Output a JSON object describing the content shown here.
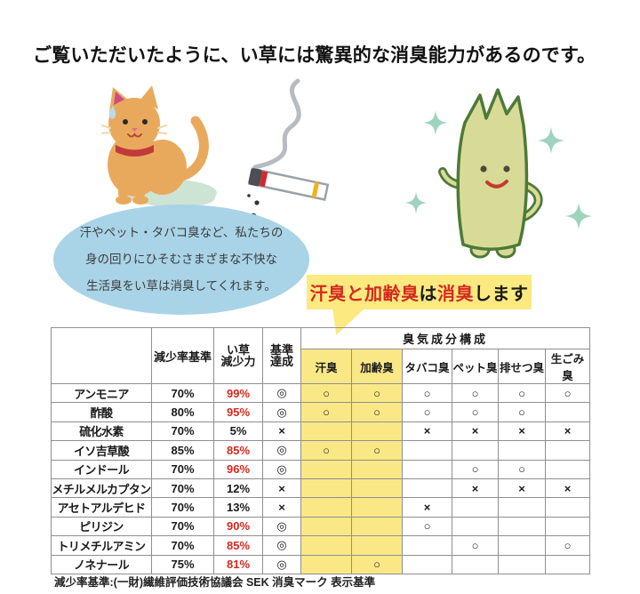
{
  "title": "ご覧いただいたように、い草には驚異的な消臭能力があるのです。",
  "speech_bubble": {
    "lines": [
      "汗やペット・タバコ臭など、私たちの",
      "身の回りにひそむさまざまな不快な",
      "生活臭をい草は消臭してくれます。"
    ],
    "bg_color": "#a9d4e7"
  },
  "callout": {
    "segments": [
      {
        "text": "汗臭と加齢臭",
        "color": "#d42a1e"
      },
      {
        "text": "は",
        "color": "#1a1a1a"
      },
      {
        "text": "消臭",
        "color": "#d42a1e"
      },
      {
        "text": "します",
        "color": "#1a1a1a"
      }
    ],
    "bg_color": "#fce980"
  },
  "illustrations": {
    "cat": "cat-with-urine-puddle-icon",
    "cigarette": "smoking-cigarette-icon",
    "igusa": "igusa-rush-grass-mascot-icon"
  },
  "table": {
    "header": {
      "col1": "減少率基準",
      "col2_lines": [
        "い草",
        "減少力"
      ],
      "col3_lines": [
        "基準",
        "達成"
      ],
      "group": "臭気成分構成",
      "odor_columns": [
        "汗臭",
        "加齢臭",
        "タバコ臭",
        "ペット臭",
        "排せつ臭",
        "生ごみ臭"
      ],
      "highlighted_columns": [
        "汗臭",
        "加齢臭"
      ]
    },
    "rows": [
      {
        "substance": "アンモニア",
        "standard": "70%",
        "igusa": "99%",
        "igusa_red": true,
        "pass": "◎",
        "odors": [
          "○",
          "○",
          "○",
          "○",
          "○",
          "○"
        ]
      },
      {
        "substance": "酢酸",
        "standard": "80%",
        "igusa": "95%",
        "igusa_red": true,
        "pass": "◎",
        "odors": [
          "○",
          "○",
          "○",
          "○",
          "○",
          ""
        ]
      },
      {
        "substance": "硫化水素",
        "standard": "70%",
        "igusa": "5%",
        "igusa_red": false,
        "pass": "×",
        "odors": [
          "",
          "",
          "×",
          "×",
          "×",
          "×"
        ]
      },
      {
        "substance": "イソ吉草酸",
        "standard": "85%",
        "igusa": "85%",
        "igusa_red": true,
        "pass": "◎",
        "odors": [
          "○",
          "○",
          "",
          "",
          "",
          ""
        ]
      },
      {
        "substance": "インドール",
        "standard": "70%",
        "igusa": "96%",
        "igusa_red": true,
        "pass": "◎",
        "odors": [
          "",
          "",
          "",
          "○",
          "○",
          ""
        ]
      },
      {
        "substance": "メチルメルカプタン",
        "standard": "70%",
        "igusa": "12%",
        "igusa_red": false,
        "pass": "×",
        "odors": [
          "",
          "",
          "",
          "×",
          "×",
          "×"
        ]
      },
      {
        "substance": "アセトアルデヒド",
        "standard": "70%",
        "igusa": "13%",
        "igusa_red": false,
        "pass": "×",
        "odors": [
          "",
          "",
          "×",
          "",
          "",
          ""
        ]
      },
      {
        "substance": "ピリジン",
        "standard": "70%",
        "igusa": "90%",
        "igusa_red": true,
        "pass": "◎",
        "odors": [
          "",
          "",
          "○",
          "",
          "",
          ""
        ]
      },
      {
        "substance": "トリメチルアミン",
        "standard": "70%",
        "igusa": "85%",
        "igusa_red": true,
        "pass": "◎",
        "odors": [
          "",
          "",
          "",
          "○",
          "",
          "○"
        ]
      },
      {
        "substance": "ノネナール",
        "standard": "75%",
        "igusa": "81%",
        "igusa_red": true,
        "pass": "◎",
        "odors": [
          "",
          "○",
          "",
          "",
          "",
          ""
        ]
      }
    ]
  },
  "footnote": "減少率基準:(一財)繊維評価技術協議会 SEK 消臭マーク 表示基準",
  "colors": {
    "red_text": "#d42a1e",
    "highlight_yellow": "#fae887",
    "callout_yellow": "#fce980",
    "bubble_blue": "#a9d4e7"
  }
}
